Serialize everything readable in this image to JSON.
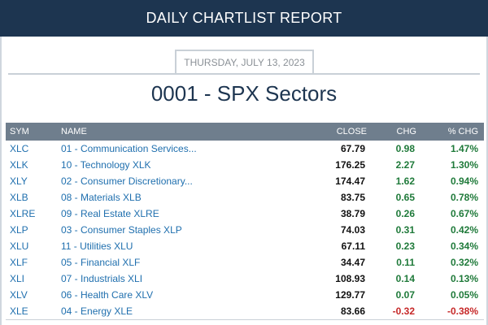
{
  "header": {
    "title": "DAILY CHARTLIST REPORT"
  },
  "report": {
    "date": "THURSDAY, JULY 13, 2023",
    "title": "0001 - SPX Sectors"
  },
  "table": {
    "columns": {
      "sym": "SYM",
      "name": "NAME",
      "close": "CLOSE",
      "chg": "CHG",
      "pct_chg": "% CHG"
    },
    "rows": [
      {
        "sym": "XLC",
        "name": "01 - Communication Services...",
        "close": "67.79",
        "chg": "0.98",
        "pct": "1.47%"
      },
      {
        "sym": "XLK",
        "name": "10 - Technology XLK",
        "close": "176.25",
        "chg": "2.27",
        "pct": "1.30%"
      },
      {
        "sym": "XLY",
        "name": "02 - Consumer Discretionary...",
        "close": "174.47",
        "chg": "1.62",
        "pct": "0.94%"
      },
      {
        "sym": "XLB",
        "name": "08 - Materials XLB",
        "close": "83.75",
        "chg": "0.65",
        "pct": "0.78%"
      },
      {
        "sym": "XLRE",
        "name": "09 - Real Estate XLRE",
        "close": "38.79",
        "chg": "0.26",
        "pct": "0.67%"
      },
      {
        "sym": "XLP",
        "name": "03 - Consumer Staples XLP",
        "close": "74.03",
        "chg": "0.31",
        "pct": "0.42%"
      },
      {
        "sym": "XLU",
        "name": "11 - Utilities XLU",
        "close": "67.11",
        "chg": "0.23",
        "pct": "0.34%"
      },
      {
        "sym": "XLF",
        "name": "05 - Financial XLF",
        "close": "34.47",
        "chg": "0.11",
        "pct": "0.32%"
      },
      {
        "sym": "XLI",
        "name": "07 - Industrials XLI",
        "close": "108.93",
        "chg": "0.14",
        "pct": "0.13%"
      },
      {
        "sym": "XLV",
        "name": "06 - Health Care XLV",
        "close": "129.77",
        "chg": "0.07",
        "pct": "0.05%"
      },
      {
        "sym": "XLE",
        "name": "04 - Energy XLE",
        "close": "83.66",
        "chg": "-0.32",
        "pct": "-0.38%"
      }
    ]
  },
  "colors": {
    "header_bg": "#1d3550",
    "table_header_bg": "#6f7e8d",
    "link": "#1f6fae",
    "positive": "#1f7a3a",
    "negative": "#c62828"
  }
}
